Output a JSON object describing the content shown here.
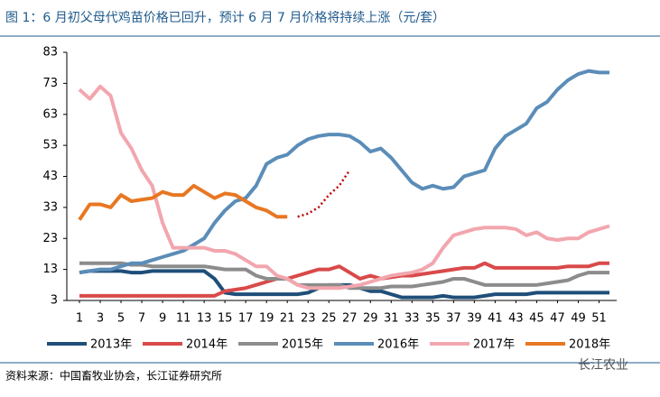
{
  "chart_data": {
    "type": "line",
    "title": "图 1：6 月初父母代鸡苗价格已回升，预计 6 月 7 月价格将持续上涨（元/套）",
    "source": "资料来源：中国畜牧业协会，长江证券研究所",
    "watermark": "长江农业",
    "x": [
      1,
      2,
      3,
      4,
      5,
      6,
      7,
      8,
      9,
      10,
      11,
      12,
      13,
      14,
      15,
      16,
      17,
      18,
      19,
      20,
      21,
      22,
      23,
      24,
      25,
      26,
      27,
      28,
      29,
      30,
      31,
      32,
      33,
      34,
      35,
      36,
      37,
      38,
      39,
      40,
      41,
      42,
      43,
      44,
      45,
      46,
      47,
      48,
      49,
      50,
      51,
      52
    ],
    "xlim": [
      1,
      52
    ],
    "xticks": [
      1,
      3,
      5,
      7,
      9,
      11,
      13,
      15,
      17,
      19,
      21,
      23,
      25,
      27,
      29,
      31,
      33,
      35,
      37,
      39,
      41,
      43,
      45,
      47,
      49,
      51
    ],
    "ylim": [
      3,
      83
    ],
    "yticks": [
      3,
      13,
      23,
      33,
      43,
      53,
      63,
      73,
      83
    ],
    "series": [
      {
        "name": "2013年",
        "color": "#1f4e79",
        "values": [
          12,
          12.5,
          12.5,
          12.5,
          12.5,
          12,
          12,
          12.5,
          12.5,
          12.5,
          12.5,
          12.5,
          12.5,
          10,
          5.5,
          5,
          5,
          5,
          5,
          5,
          5,
          5,
          5.5,
          7,
          8,
          8,
          8,
          7,
          6,
          6,
          5,
          4,
          4,
          4,
          4,
          4.5,
          4,
          4,
          4,
          4.5,
          5,
          5,
          5,
          5,
          5.5,
          5.5,
          5.5,
          5.5,
          5.5,
          5.5,
          5.5,
          5.5
        ]
      },
      {
        "name": "2014年",
        "color": "#d94a4a",
        "values": [
          4.5,
          4.5,
          4.5,
          4.5,
          4.5,
          4.5,
          4.5,
          4.5,
          4.5,
          4.5,
          4.5,
          4.5,
          4.5,
          4.5,
          6,
          6.5,
          7,
          8,
          9,
          10,
          10,
          11,
          12,
          13,
          13,
          14,
          12,
          10,
          11,
          10,
          10.5,
          11,
          11,
          11.5,
          12,
          12.5,
          13,
          13.5,
          13.5,
          15,
          13.5,
          13.5,
          13.5,
          13.5,
          13.5,
          13.5,
          13.5,
          14,
          14,
          14,
          15,
          15
        ]
      },
      {
        "name": "2015年",
        "color": "#8c8c8c",
        "values": [
          15,
          15,
          15,
          15,
          15,
          14.5,
          14.5,
          14,
          14,
          14,
          14,
          14,
          14,
          13.5,
          13,
          13,
          13,
          11,
          10,
          10,
          10,
          8,
          8,
          8,
          8,
          8,
          7,
          7,
          7,
          7,
          7.5,
          7.5,
          7.5,
          8,
          8.5,
          9,
          10,
          10,
          9,
          8,
          8,
          8,
          8,
          8,
          8,
          8.5,
          9,
          9.5,
          11,
          12,
          12,
          12
        ]
      },
      {
        "name": "2016年",
        "color": "#5b8db8",
        "values": [
          12,
          12.5,
          13,
          13,
          14,
          15,
          15,
          16,
          17,
          18,
          19,
          21,
          23,
          28,
          32,
          35,
          36,
          40,
          47,
          49,
          50,
          53,
          55,
          56,
          56.5,
          56.5,
          56,
          54,
          51,
          52,
          49,
          45,
          41,
          39,
          40,
          39,
          39.5,
          43,
          44,
          45,
          52,
          56,
          58,
          60,
          65,
          67,
          71,
          74,
          76,
          77,
          76.5,
          76.5
        ]
      },
      {
        "name": "2017年",
        "color": "#f2a6ae",
        "values": [
          71,
          68,
          72,
          69,
          57,
          52,
          45,
          40,
          28,
          20,
          20,
          20,
          20,
          19,
          19,
          18,
          16,
          14,
          14,
          11,
          10,
          8,
          7,
          7,
          7,
          7,
          7.5,
          8,
          9,
          10,
          11,
          11.5,
          12,
          13,
          15,
          20,
          24,
          25,
          26,
          26.5,
          26.5,
          26.5,
          26,
          24,
          25,
          23,
          22.5,
          23,
          23,
          25,
          26,
          27
        ]
      },
      {
        "name": "2018年",
        "color": "#e87722",
        "values": [
          29,
          34,
          34,
          33,
          37,
          35,
          35.5,
          36,
          38,
          37,
          37,
          40,
          38,
          36,
          37.5,
          37,
          35,
          33,
          32,
          30,
          30,
          null,
          null,
          null,
          null,
          null,
          null,
          null,
          null,
          null,
          null,
          null,
          null,
          null,
          null,
          null,
          null,
          null,
          null,
          null,
          null,
          null,
          null,
          null,
          null,
          null,
          null,
          null,
          null,
          null,
          null,
          null
        ]
      },
      {
        "color": "#c00000",
        "dashed": true,
        "values": [
          null,
          null,
          null,
          null,
          null,
          null,
          null,
          null,
          null,
          null,
          null,
          null,
          null,
          null,
          null,
          null,
          null,
          null,
          null,
          null,
          null,
          30,
          31,
          33,
          37,
          40,
          45,
          null,
          null,
          null,
          null,
          null,
          null,
          null,
          null,
          null,
          null,
          null,
          null,
          null,
          null,
          null,
          null,
          null,
          null,
          null,
          null,
          null,
          null,
          null,
          null,
          null
        ]
      }
    ]
  }
}
